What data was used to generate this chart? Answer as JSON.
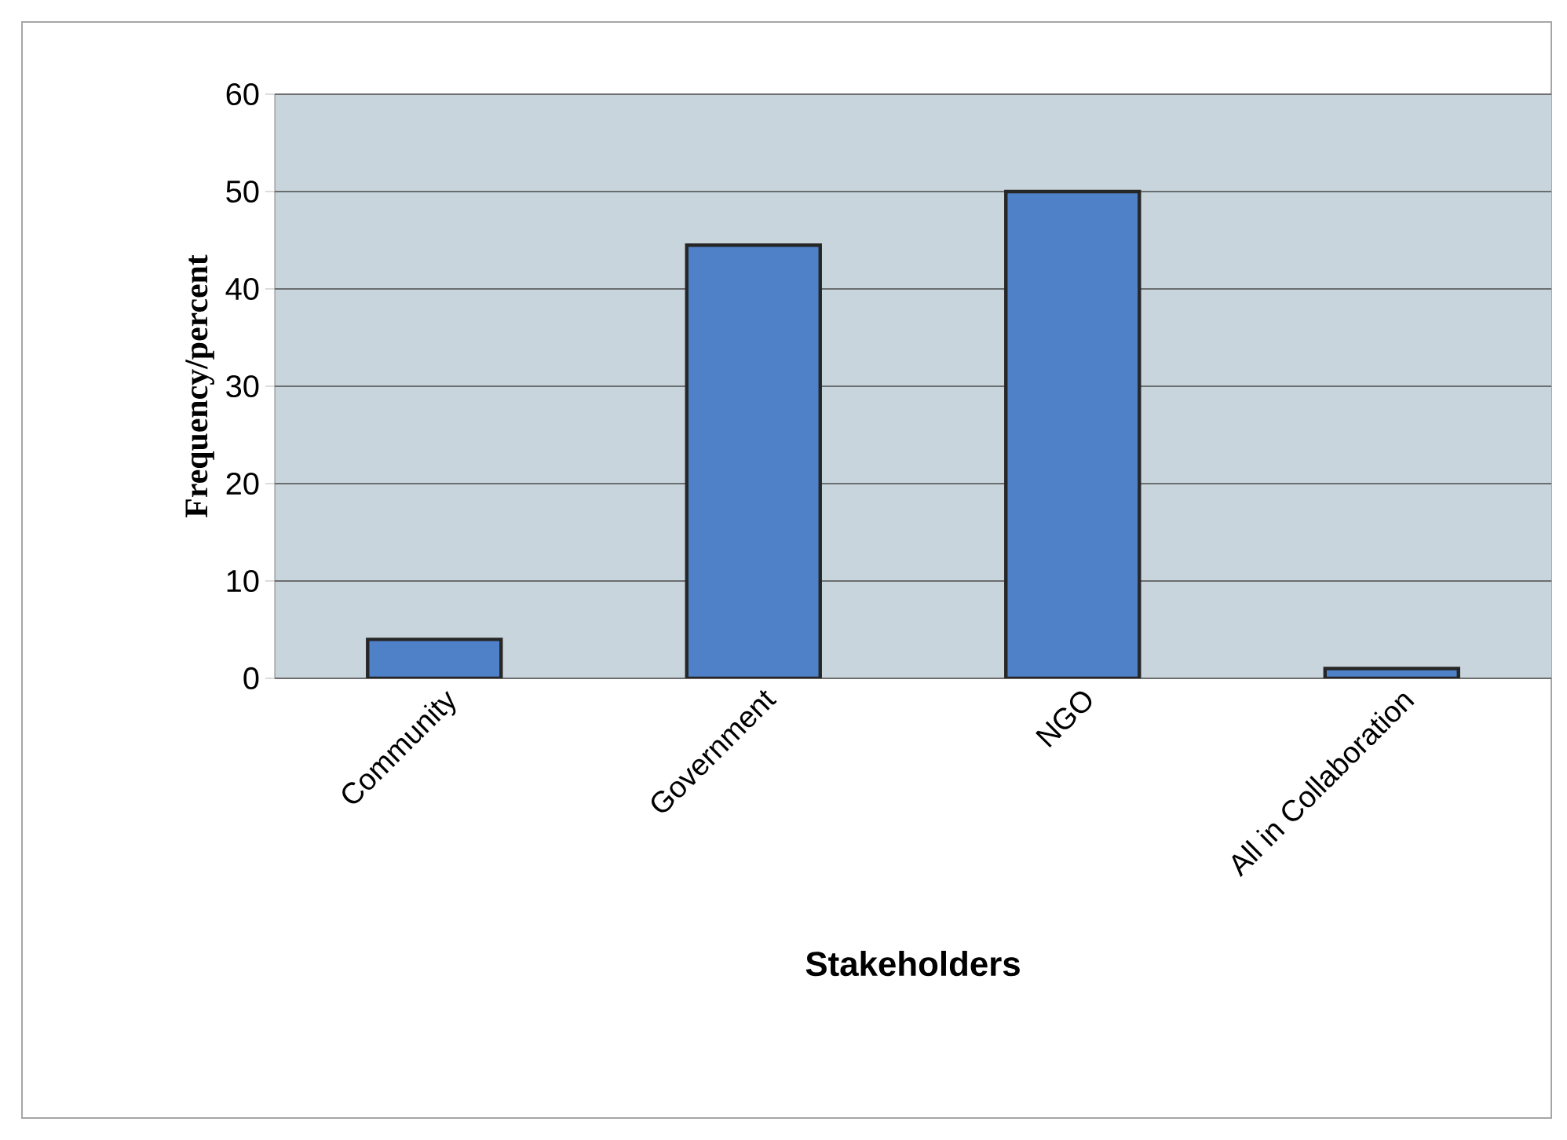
{
  "chart_data": {
    "type": "bar",
    "xlabel": "Stakeholders",
    "ylabel": "Frequency/percent",
    "categories": [
      "Community",
      "Government",
      "NGO",
      "All in Collaboration"
    ],
    "values": [
      4,
      44.5,
      50,
      1
    ],
    "color": "#4f81c8",
    "ylim": [
      0,
      60
    ],
    "yticks": [
      0,
      10,
      20,
      30,
      40,
      50,
      60
    ],
    "grid": "y"
  }
}
